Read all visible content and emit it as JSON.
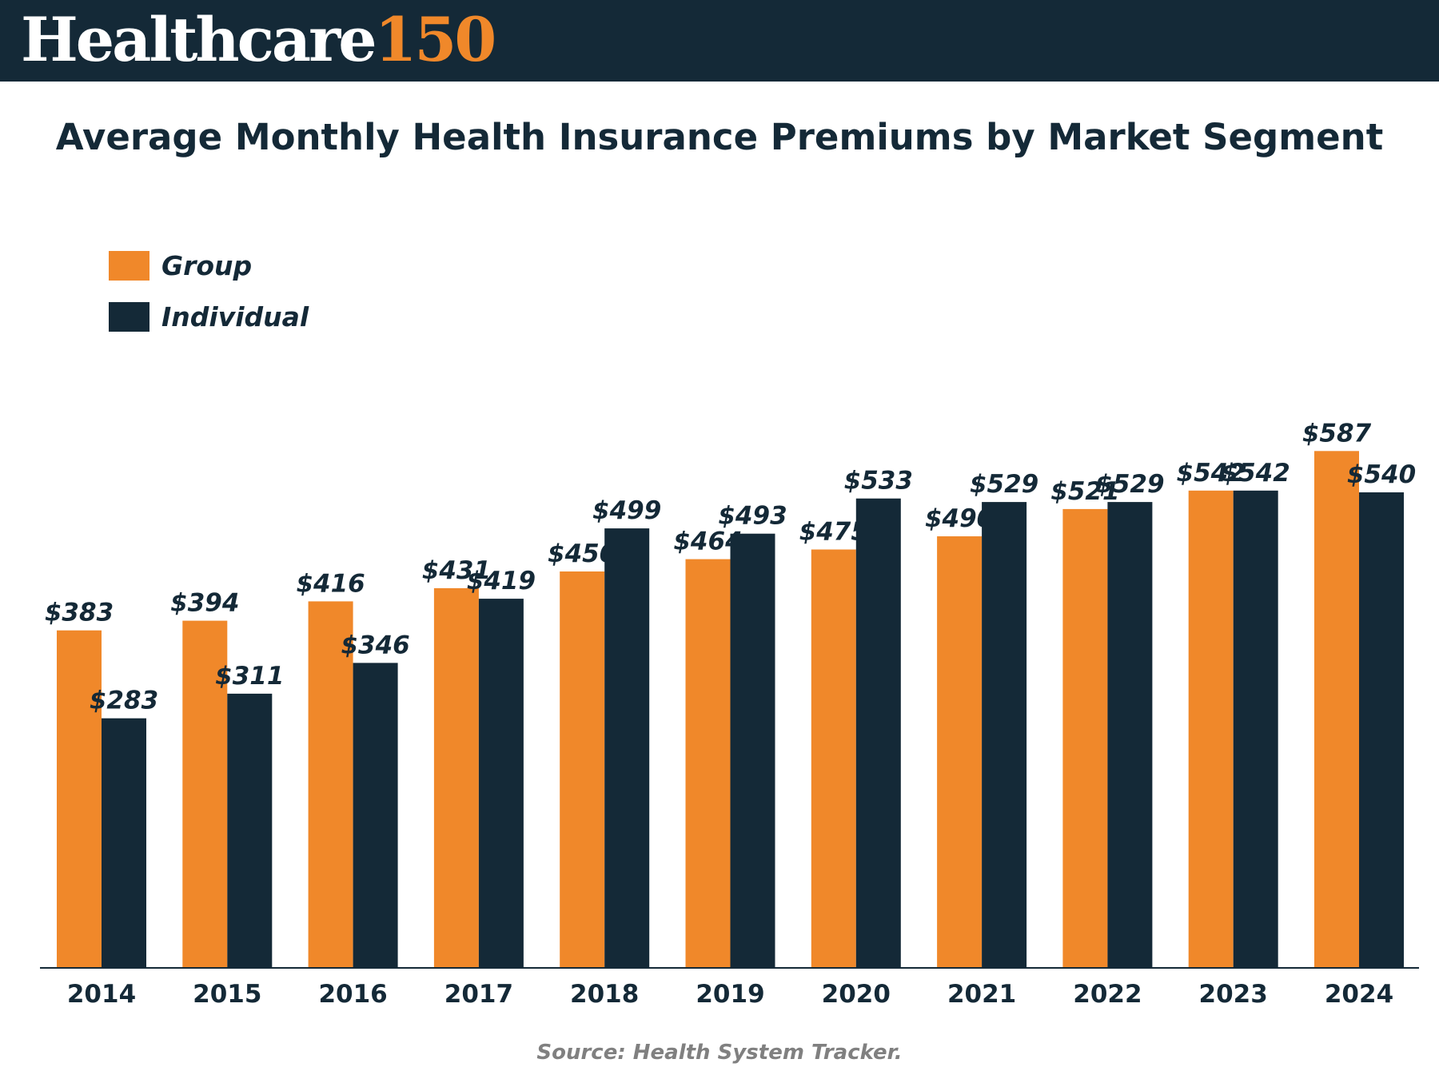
{
  "header": {
    "brand": "Healthcare",
    "number": "150",
    "brand_color": "#ffffff",
    "number_color": "#f0882a",
    "background": "#142937"
  },
  "chart_data": {
    "type": "bar",
    "title": "Average Monthly Health Insurance Premiums by Market Segment",
    "categories": [
      "2014",
      "2015",
      "2016",
      "2017",
      "2018",
      "2019",
      "2020",
      "2021",
      "2022",
      "2023",
      "2024"
    ],
    "series": [
      {
        "name": "Group",
        "color": "#f0882a",
        "values": [
          383,
          394,
          416,
          431,
          450,
          464,
          475,
          490,
          521,
          542,
          587
        ],
        "labels": [
          "$383",
          "$394",
          "$416",
          "$431",
          "$450",
          "$464",
          "$475",
          "$490",
          "$521",
          "$542",
          "$587"
        ]
      },
      {
        "name": "Individual",
        "color": "#142937",
        "values": [
          283,
          311,
          346,
          419,
          499,
          493,
          533,
          529,
          529,
          542,
          540
        ],
        "labels": [
          "$283",
          "$311",
          "$346",
          "$419",
          "$499",
          "$493",
          "$533",
          "$529",
          "$529",
          "$542",
          "$540"
        ]
      }
    ],
    "xlabel": "",
    "ylabel": "",
    "ylim": [
      0,
      650
    ],
    "grid": false,
    "legend_position": "top-left",
    "source": "Source: Health System Tracker."
  }
}
